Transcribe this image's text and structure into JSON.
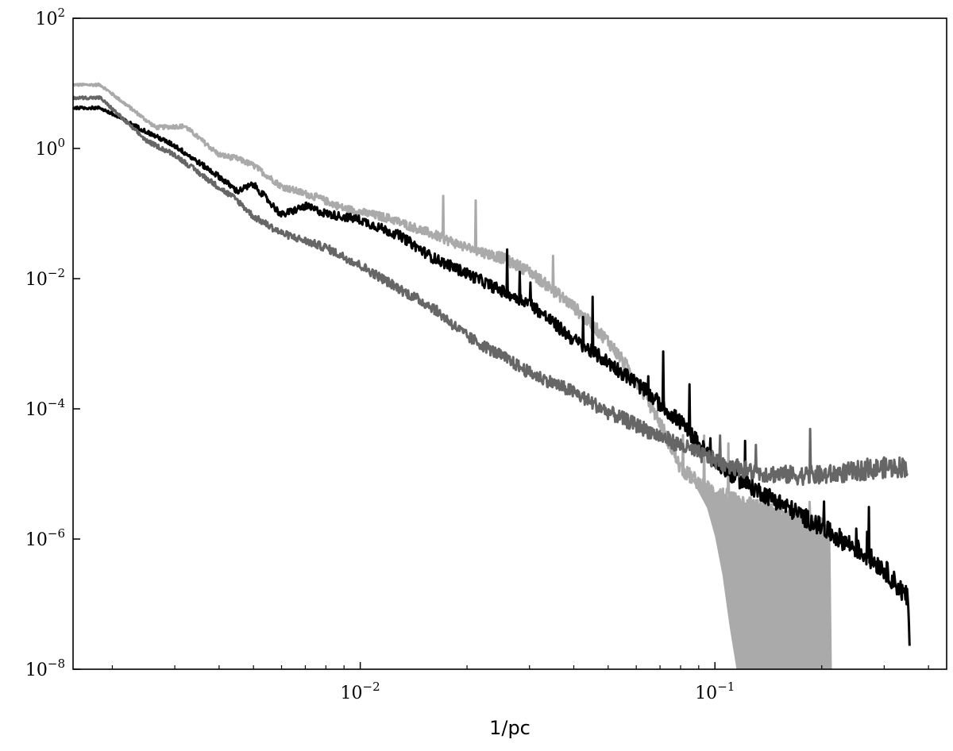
{
  "chart_data": {
    "type": "line",
    "title": "",
    "xlabel": "1/pc",
    "ylabel": "",
    "xscale": "log",
    "yscale": "log",
    "xlim": [
      0.00155,
      0.45
    ],
    "ylim": [
      1e-08,
      100
    ],
    "grid": false,
    "legend": "none",
    "x_ticks": [
      {
        "value": 0.01,
        "base": "10",
        "exp": "−2"
      },
      {
        "value": 0.1,
        "base": "10",
        "exp": "−1"
      }
    ],
    "y_ticks": [
      {
        "value": 100,
        "base": "10",
        "exp": "2"
      },
      {
        "value": 1,
        "base": "10",
        "exp": "0"
      },
      {
        "value": 0.01,
        "base": "10",
        "exp": "−2"
      },
      {
        "value": 0.0001,
        "base": "10",
        "exp": "−4"
      },
      {
        "value": 1e-06,
        "base": "10",
        "exp": "−6"
      },
      {
        "value": 1e-08,
        "base": "10",
        "exp": "−8"
      }
    ],
    "series": [
      {
        "color": "#aaaaaa",
        "points": [
          [
            0.00155,
            9.5
          ],
          [
            0.00185,
            9.5
          ],
          [
            0.00265,
            2.1
          ],
          [
            0.0032,
            2.2
          ],
          [
            0.004,
            0.8
          ],
          [
            0.0045,
            0.7
          ],
          [
            0.005,
            0.55
          ],
          [
            0.006,
            0.26
          ],
          [
            0.0075,
            0.18
          ],
          [
            0.009,
            0.12
          ],
          [
            0.012,
            0.085
          ],
          [
            0.016,
            0.048
          ],
          [
            0.02,
            0.03
          ],
          [
            0.025,
            0.021
          ],
          [
            0.03,
            0.013
          ],
          [
            0.04,
            0.0037
          ],
          [
            0.05,
            0.0011
          ],
          [
            0.06,
            0.00028
          ],
          [
            0.07,
            6.2e-05
          ],
          [
            0.08,
            1.22e-05
          ],
          [
            0.09,
            7.3e-06
          ],
          [
            0.1,
            5.2e-06
          ],
          [
            0.15,
            2.5e-06
          ],
          [
            0.21,
            1.4e-06
          ],
          [
            0.212,
            1e-08
          ]
        ],
        "floor": [
          [
            0.095,
            3e-06
          ],
          [
            0.1,
            1.1e-06
          ],
          [
            0.105,
            2.8e-07
          ],
          [
            0.11,
            4.5e-08
          ],
          [
            0.115,
            1e-08
          ]
        ]
      },
      {
        "color": "#000000",
        "points": [
          [
            0.00155,
            4.2
          ],
          [
            0.00185,
            4.2
          ],
          [
            0.0025,
            1.8
          ],
          [
            0.003,
            1.1
          ],
          [
            0.0036,
            0.55
          ],
          [
            0.004,
            0.37
          ],
          [
            0.0045,
            0.22
          ],
          [
            0.005,
            0.28
          ],
          [
            0.006,
            0.095
          ],
          [
            0.007,
            0.13
          ],
          [
            0.008,
            0.1
          ],
          [
            0.01,
            0.08
          ],
          [
            0.013,
            0.045
          ],
          [
            0.016,
            0.021
          ],
          [
            0.02,
            0.012
          ],
          [
            0.025,
            0.0065
          ],
          [
            0.03,
            0.0042
          ],
          [
            0.04,
            0.00115
          ],
          [
            0.05,
            0.00052
          ],
          [
            0.06,
            0.00025
          ],
          [
            0.08,
            6.2e-05
          ],
          [
            0.1,
            1.5e-05
          ],
          [
            0.12,
            7.5e-06
          ],
          [
            0.15,
            3.8e-06
          ],
          [
            0.2,
            1.5e-06
          ],
          [
            0.25,
            7.2e-07
          ],
          [
            0.3,
            3.5e-07
          ],
          [
            0.35,
            1.2e-07
          ],
          [
            0.355,
            1.5e-08
          ]
        ]
      },
      {
        "color": "#666666",
        "points": [
          [
            0.00155,
            6.0
          ],
          [
            0.00185,
            6.0
          ],
          [
            0.0025,
            1.3
          ],
          [
            0.003,
            0.8
          ],
          [
            0.0036,
            0.38
          ],
          [
            0.0045,
            0.16
          ],
          [
            0.005,
            0.09
          ],
          [
            0.006,
            0.05
          ],
          [
            0.008,
            0.03
          ],
          [
            0.01,
            0.016
          ],
          [
            0.013,
            0.0068
          ],
          [
            0.016,
            0.0036
          ],
          [
            0.02,
            0.0013
          ],
          [
            0.025,
            0.00065
          ],
          [
            0.03,
            0.00036
          ],
          [
            0.04,
            0.00018
          ],
          [
            0.05,
            8.9e-05
          ],
          [
            0.07,
            3.8e-05
          ],
          [
            0.1,
            1.6e-05
          ],
          [
            0.13,
            1.05e-05
          ],
          [
            0.17,
            9.5e-06
          ],
          [
            0.2,
            9.5e-06
          ],
          [
            0.25,
            1.1e-05
          ],
          [
            0.3,
            1.25e-05
          ],
          [
            0.35,
            1.3e-05
          ]
        ]
      }
    ]
  }
}
